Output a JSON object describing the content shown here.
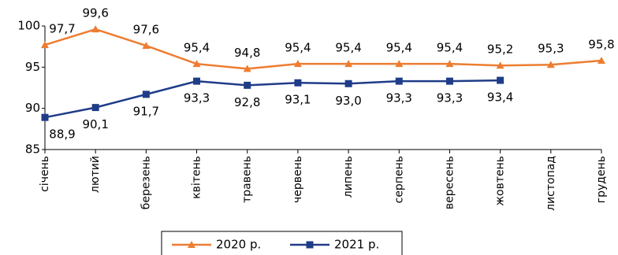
{
  "chart_data": {
    "type": "line",
    "categories": [
      "січень",
      "лютий",
      "березень",
      "квітень",
      "травень",
      "червень",
      "липень",
      "серпень",
      "вересень",
      "жовтень",
      "листопад",
      "грудень"
    ],
    "series": [
      {
        "name": "2020 р.",
        "color": "#ed7d31",
        "marker": "triangle",
        "values": [
          97.7,
          99.6,
          97.6,
          95.4,
          94.8,
          95.4,
          95.4,
          95.4,
          95.4,
          95.2,
          95.3,
          95.8
        ],
        "value_labels": [
          "97,7",
          "99,6",
          "97,6",
          "95,4",
          "94,8",
          "95,4",
          "95,4",
          "95,4",
          "95,4",
          "95,2",
          "95,3",
          "95,8"
        ]
      },
      {
        "name": "2021 р.",
        "color": "#1f3c88",
        "marker": "square",
        "values": [
          88.9,
          90.1,
          91.7,
          93.3,
          92.8,
          93.1,
          93.0,
          93.3,
          93.3,
          93.4,
          null,
          null
        ],
        "value_labels": [
          "88,9",
          "90,1",
          "91,7",
          "93,3",
          "92,8",
          "93,1",
          "93,0",
          "93,3",
          "93,3",
          "93,4",
          null,
          null
        ]
      }
    ],
    "ylim": [
      85,
      100
    ],
    "yticks": [
      85,
      90,
      95,
      100
    ],
    "grid": false,
    "legend": "bottom"
  }
}
